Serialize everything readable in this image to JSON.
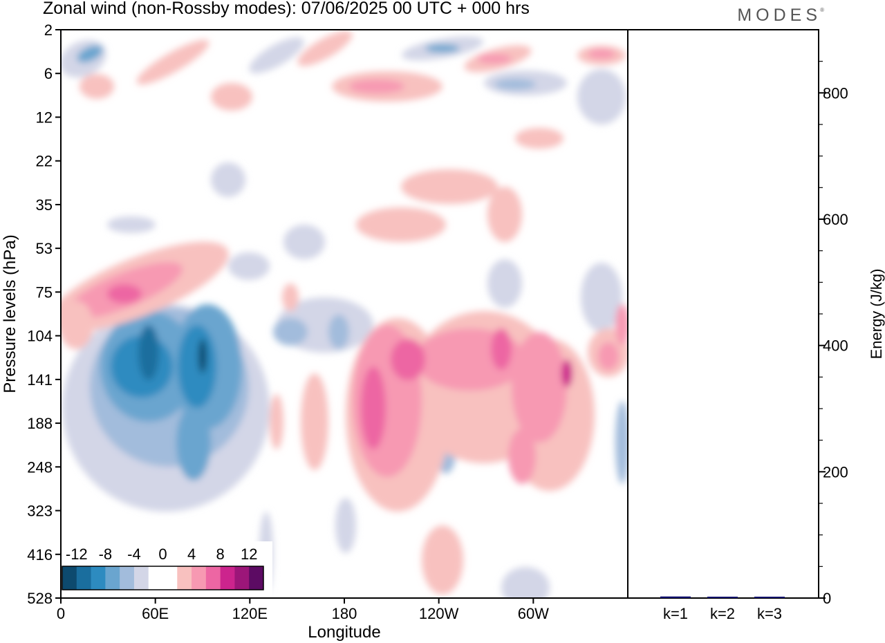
{
  "header": {
    "title": "Zonal wind (non-Rossby modes):  07/06/2025  00 UTC  + 000 hrs",
    "brand": "MODES",
    "brand_mark": "®"
  },
  "chart_data": [
    {
      "type": "heatmap",
      "title": "Zonal wind (non-Rossby modes):  07/06/2025  00 UTC  + 000 hrs",
      "xlabel": "Longitude",
      "ylabel": "Pressure levels (hPa)",
      "x_ticks": [
        "0",
        "60E",
        "120E",
        "180",
        "120W",
        "60W"
      ],
      "x_tick_degrees": [
        0,
        60,
        120,
        180,
        240,
        300
      ],
      "xlim": [
        0,
        360
      ],
      "y_ticks": [
        "2",
        "6",
        "12",
        "22",
        "35",
        "53",
        "75",
        "104",
        "141",
        "188",
        "248",
        "323",
        "416",
        "528"
      ],
      "y_scale": "model-level (irregular pressure)",
      "y_inverted": true,
      "colorbar": {
        "labels": [
          "-12",
          "-8",
          "-4",
          "0",
          "4",
          "8",
          "12"
        ],
        "colors": [
          "#0d4a6e",
          "#1a6e9e",
          "#2d8bc0",
          "#6aa5cf",
          "#a2bcdc",
          "#d3d6e7",
          "#ffffff",
          "#ffffff",
          "#f8c1bf",
          "#f799b2",
          "#ed66a3",
          "#cc248d",
          "#9c1679",
          "#5c0b63"
        ]
      },
      "features": [
        {
          "sign": "negative",
          "lon": [
            10,
            35
          ],
          "level": "5",
          "peak": -8
        },
        {
          "sign": "positive",
          "lon": [
            30,
            70
          ],
          "level": "65-80",
          "peak": 8
        },
        {
          "sign": "negative",
          "lon": [
            30,
            100
          ],
          "level": "100-250",
          "peak": -10
        },
        {
          "sign": "negative",
          "lon": [
            75,
            90
          ],
          "level": "120-200",
          "peak": -10
        },
        {
          "sign": "positive",
          "lon": [
            190,
            240
          ],
          "level": "104-330",
          "peak": 8
        },
        {
          "sign": "positive",
          "lon": [
            240,
            310
          ],
          "level": "104-250",
          "peak": 8
        },
        {
          "sign": "positive",
          "lon": [
            190,
            250
          ],
          "level": "6-12",
          "peak": 6
        },
        {
          "sign": "negative",
          "lon": [
            230,
            300
          ],
          "level": "3-8",
          "peak": -6
        }
      ]
    },
    {
      "type": "bar",
      "ylabel": "Energy (J/kg)",
      "categories": [
        "k=1",
        "k=2",
        "k=3"
      ],
      "values": [
        2.5,
        1.2,
        1.0
      ],
      "ylim": [
        0,
        900
      ],
      "y_ticks": [
        0,
        200,
        400,
        600,
        800
      ],
      "bar_color": "#10106e"
    }
  ]
}
